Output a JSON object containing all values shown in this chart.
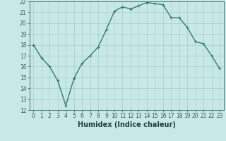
{
  "xlabel": "Humidex (Indice chaleur)",
  "ylabel": "",
  "x": [
    0,
    1,
    2,
    3,
    4,
    5,
    6,
    7,
    8,
    9,
    10,
    11,
    12,
    13,
    14,
    15,
    16,
    17,
    18,
    19,
    20,
    21,
    22,
    23
  ],
  "y": [
    18,
    16.8,
    16.0,
    14.7,
    12.4,
    14.9,
    16.3,
    17.0,
    17.8,
    19.4,
    21.1,
    21.5,
    21.3,
    21.6,
    21.9,
    21.8,
    21.7,
    20.5,
    20.5,
    19.6,
    18.3,
    18.1,
    17.0,
    15.8
  ],
  "ylim": [
    12,
    22
  ],
  "xlim": [
    -0.5,
    23.5
  ],
  "yticks": [
    12,
    13,
    14,
    15,
    16,
    17,
    18,
    19,
    20,
    21,
    22
  ],
  "xticks": [
    0,
    1,
    2,
    3,
    4,
    5,
    6,
    7,
    8,
    9,
    10,
    11,
    12,
    13,
    14,
    15,
    16,
    17,
    18,
    19,
    20,
    21,
    22,
    23
  ],
  "line_color": "#2e7d6e",
  "marker": "+",
  "bg_color": "#c8e8e8",
  "grid_color": "#a8cccc",
  "tick_label_color": "#2e6060",
  "axis_label_color": "#1e4040",
  "linewidth": 1.0,
  "markersize": 3,
  "markeredgewidth": 0.8,
  "tick_fontsize": 5.5,
  "xlabel_fontsize": 7,
  "xlabel_fontweight": "bold"
}
